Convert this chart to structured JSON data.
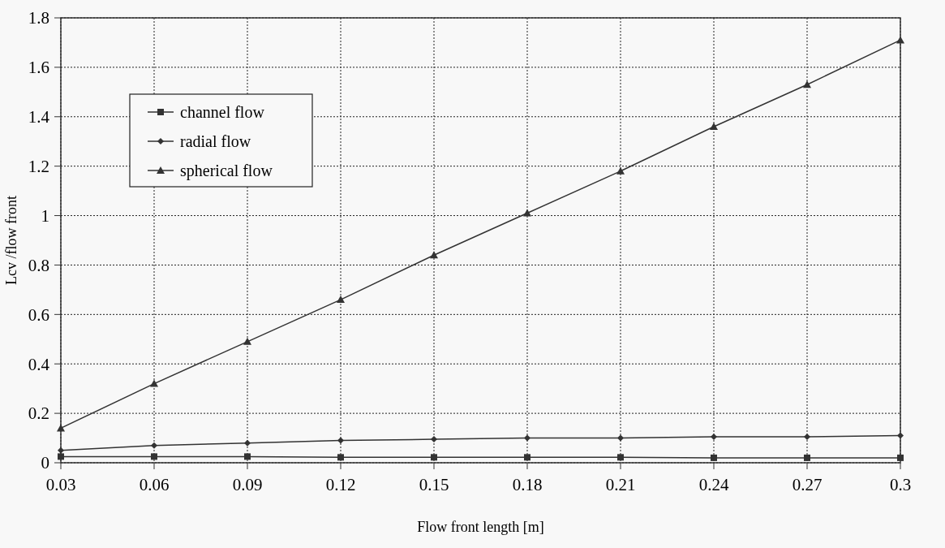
{
  "chart_data": {
    "type": "line",
    "xlabel": "Flow front length [m]",
    "ylabel": "Lcv /flow front",
    "x": [
      0.03,
      0.06,
      0.09,
      0.12,
      0.15,
      0.18,
      0.21,
      0.24,
      0.27,
      0.3
    ],
    "series": [
      {
        "name": "channel flow",
        "color": "#333333",
        "marker": "square",
        "values": [
          0.025,
          0.025,
          0.025,
          0.022,
          0.022,
          0.022,
          0.022,
          0.02,
          0.02,
          0.02
        ]
      },
      {
        "name": "radial flow",
        "color": "#333333",
        "marker": "diamond",
        "values": [
          0.05,
          0.07,
          0.08,
          0.09,
          0.095,
          0.1,
          0.1,
          0.105,
          0.105,
          0.11
        ]
      },
      {
        "name": "spherical flow",
        "color": "#333333",
        "marker": "triangle",
        "values": [
          0.14,
          0.32,
          0.49,
          0.66,
          0.84,
          1.01,
          1.18,
          1.36,
          1.53,
          1.71
        ]
      }
    ],
    "xlim": [
      0.03,
      0.3
    ],
    "xticks": [
      0.03,
      0.06,
      0.09,
      0.12,
      0.15,
      0.18,
      0.21,
      0.24,
      0.27,
      0.3
    ],
    "ylim": [
      0,
      1.8
    ],
    "yticks": [
      0,
      0.2,
      0.4,
      0.6,
      0.8,
      1,
      1.2,
      1.4,
      1.6,
      1.8
    ],
    "grid": true,
    "legend": "top left",
    "line_style": "solid"
  }
}
